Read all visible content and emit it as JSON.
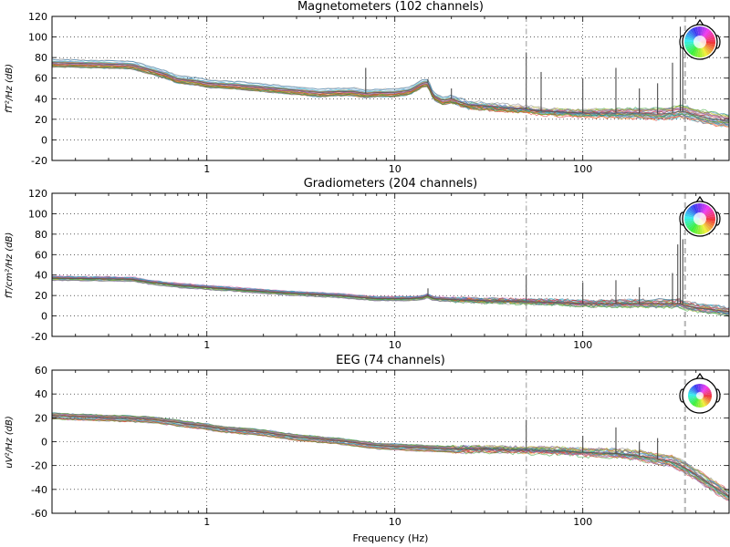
{
  "figure": {
    "xlabel": "Frequency (Hz)"
  },
  "colors": {
    "frame": "#000000",
    "grid": "#000000",
    "line_ref": "#7f7f7f",
    "spectrum_palette": [
      "#1f77b4",
      "#d62728",
      "#2ca02c",
      "#9467bd",
      "#8c564b",
      "#e377c2",
      "#7f7f7f",
      "#bcbd22",
      "#17becf",
      "#ff7f0e"
    ]
  },
  "chart_data": [
    {
      "type": "line",
      "title": "Magnetometers (102 channels)",
      "ylabel": "fT²/Hz (dB)",
      "xscale": "log",
      "xlim": [
        0.15,
        600
      ],
      "ylim": [
        -20,
        120
      ],
      "yticks": [
        -20,
        0,
        20,
        40,
        60,
        80,
        100,
        120
      ],
      "xticks": [
        1,
        10,
        100
      ],
      "xtick_labels": [
        "1",
        "10",
        "100"
      ],
      "grid": true,
      "vlines_hz": [
        50,
        350
      ],
      "sensor_layout_inset": "top-right",
      "series_summary": {
        "mean": {
          "x": [
            0.15,
            0.4,
            0.5,
            0.6,
            0.7,
            0.9,
            1,
            1.5,
            2,
            3,
            4,
            5,
            6,
            7,
            8,
            10,
            12,
            14,
            15,
            16,
            18,
            20,
            22,
            25,
            30,
            40,
            50,
            60,
            80,
            100,
            150,
            200,
            250,
            300,
            330,
            350,
            400,
            500,
            600
          ],
          "y": [
            75,
            73,
            68,
            64,
            59,
            57,
            55,
            53,
            51,
            48,
            46,
            47,
            47,
            45,
            46,
            46,
            48,
            55,
            56,
            43,
            38,
            40,
            37,
            34,
            33,
            31,
            30,
            28,
            27,
            26,
            26,
            26,
            25,
            26,
            28,
            27,
            24,
            20,
            18
          ]
        },
        "spread": 8,
        "n_channels": 102,
        "peaks": [
          {
            "x": 7,
            "y": 70
          },
          {
            "x": 15,
            "y": 59
          },
          {
            "x": 20,
            "y": 50
          },
          {
            "x": 50,
            "y": 85
          },
          {
            "x": 60,
            "y": 66
          },
          {
            "x": 100,
            "y": 60
          },
          {
            "x": 150,
            "y": 70
          },
          {
            "x": 200,
            "y": 50
          },
          {
            "x": 250,
            "y": 55
          },
          {
            "x": 300,
            "y": 75
          },
          {
            "x": 330,
            "y": 110
          },
          {
            "x": 340,
            "y": 95
          }
        ]
      }
    },
    {
      "type": "line",
      "title": "Gradiometers (204 channels)",
      "ylabel": "fT/cm²/Hz (dB)",
      "xscale": "log",
      "xlim": [
        0.15,
        600
      ],
      "ylim": [
        -20,
        120
      ],
      "yticks": [
        -20,
        0,
        20,
        40,
        60,
        80,
        100,
        120
      ],
      "xticks": [
        1,
        10,
        100
      ],
      "xtick_labels": [
        "1",
        "10",
        "100"
      ],
      "grid": true,
      "vlines_hz": [
        50,
        350
      ],
      "sensor_layout_inset": "top-right",
      "series_summary": {
        "mean": {
          "x": [
            0.15,
            0.4,
            0.5,
            0.7,
            1,
            2,
            3,
            5,
            8,
            10,
            12,
            14,
            15,
            16,
            20,
            30,
            50,
            80,
            100,
            200,
            300,
            330,
            350,
            400,
            500,
            600
          ],
          "y": [
            37,
            36,
            33,
            30,
            28,
            24,
            22,
            20,
            17,
            17,
            17,
            18,
            20,
            17,
            16,
            15,
            14,
            13,
            12,
            12,
            12,
            12,
            10,
            8,
            6,
            4
          ]
        },
        "spread": 5,
        "n_channels": 204,
        "peaks": [
          {
            "x": 15,
            "y": 27
          },
          {
            "x": 50,
            "y": 40
          },
          {
            "x": 100,
            "y": 33
          },
          {
            "x": 150,
            "y": 35
          },
          {
            "x": 200,
            "y": 28
          },
          {
            "x": 300,
            "y": 42
          },
          {
            "x": 320,
            "y": 70
          },
          {
            "x": 330,
            "y": 95
          },
          {
            "x": 340,
            "y": 75
          }
        ]
      }
    },
    {
      "type": "line",
      "title": "EEG (74 channels)",
      "ylabel": "uV²/Hz (dB)",
      "xscale": "log",
      "xlim": [
        0.15,
        600
      ],
      "ylim": [
        -60,
        60
      ],
      "yticks": [
        -60,
        -40,
        -20,
        0,
        20,
        40,
        60
      ],
      "xticks": [
        1,
        10,
        100
      ],
      "xtick_labels": [
        "1",
        "10",
        "100"
      ],
      "grid": true,
      "vlines_hz": [
        50,
        350
      ],
      "sensor_layout_inset": "top-right",
      "series_summary": {
        "mean": {
          "x": [
            0.15,
            0.5,
            1,
            1.2,
            2,
            3,
            5,
            8,
            10,
            15,
            20,
            30,
            50,
            80,
            100,
            150,
            200,
            300,
            350,
            400,
            500,
            600
          ],
          "y": [
            22,
            19,
            13,
            11,
            8,
            4,
            1,
            -3,
            -4,
            -5,
            -6,
            -6,
            -7,
            -8,
            -9,
            -10,
            -12,
            -17,
            -22,
            -28,
            -38,
            -46
          ]
        },
        "spread": 6,
        "n_channels": 74,
        "peaks": [
          {
            "x": 50,
            "y": 18
          },
          {
            "x": 100,
            "y": 5
          },
          {
            "x": 150,
            "y": 12
          },
          {
            "x": 200,
            "y": 0
          },
          {
            "x": 250,
            "y": 3
          }
        ]
      }
    }
  ]
}
